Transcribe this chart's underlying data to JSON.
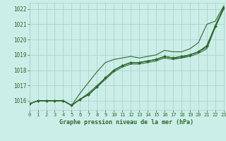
{
  "title": "Graphe pression niveau de la mer (hPa)",
  "bg_color": "#cceee8",
  "grid_color": "#aacccc",
  "line_color": "#2d6a2d",
  "xlim": [
    0,
    23
  ],
  "ylim": [
    1015.4,
    1022.4
  ],
  "yticks": [
    1016,
    1017,
    1018,
    1019,
    1020,
    1021,
    1022
  ],
  "xticks": [
    0,
    1,
    2,
    3,
    4,
    5,
    6,
    7,
    8,
    9,
    10,
    11,
    12,
    13,
    14,
    15,
    16,
    17,
    18,
    19,
    20,
    21,
    22,
    23
  ],
  "series_high": [
    1015.8,
    1016.0,
    1016.0,
    1016.0,
    1016.0,
    1015.7,
    1016.5,
    1017.2,
    1017.9,
    1018.5,
    1018.7,
    1018.8,
    1018.9,
    1018.8,
    1018.9,
    1019.0,
    1019.3,
    1019.2,
    1019.2,
    1019.4,
    1019.8,
    1021.0,
    1021.2,
    1022.2
  ],
  "series_mid1": [
    1015.8,
    1016.0,
    1016.0,
    1016.0,
    1016.0,
    1015.7,
    1016.1,
    1016.5,
    1017.0,
    1017.5,
    1018.0,
    1018.3,
    1018.5,
    1018.5,
    1018.6,
    1018.7,
    1018.9,
    1018.8,
    1018.9,
    1019.0,
    1019.2,
    1019.6,
    1020.9,
    1022.1
  ],
  "series_mid2": [
    1015.8,
    1016.0,
    1016.0,
    1016.0,
    1016.0,
    1015.7,
    1016.1,
    1016.4,
    1016.9,
    1017.5,
    1018.0,
    1018.3,
    1018.5,
    1018.5,
    1018.6,
    1018.7,
    1018.9,
    1018.8,
    1018.8,
    1019.0,
    1019.2,
    1019.5,
    1020.9,
    1022.05
  ],
  "series_low": [
    1015.8,
    1016.0,
    1016.0,
    1016.0,
    1016.0,
    1015.7,
    1016.1,
    1016.4,
    1016.9,
    1017.4,
    1017.9,
    1018.2,
    1018.4,
    1018.4,
    1018.5,
    1018.6,
    1018.8,
    1018.7,
    1018.8,
    1018.9,
    1019.1,
    1019.4,
    1020.8,
    1022.0
  ],
  "marker_series": [
    1015.8,
    1016.0,
    1016.0,
    1016.0,
    1016.0,
    1015.7,
    1016.1,
    1016.4,
    1016.9,
    1017.5,
    1018.0,
    1018.3,
    1018.5,
    1018.5,
    1018.6,
    1018.7,
    1018.9,
    1018.8,
    1018.9,
    1019.0,
    1019.2,
    1019.6,
    1020.9,
    1022.1
  ]
}
